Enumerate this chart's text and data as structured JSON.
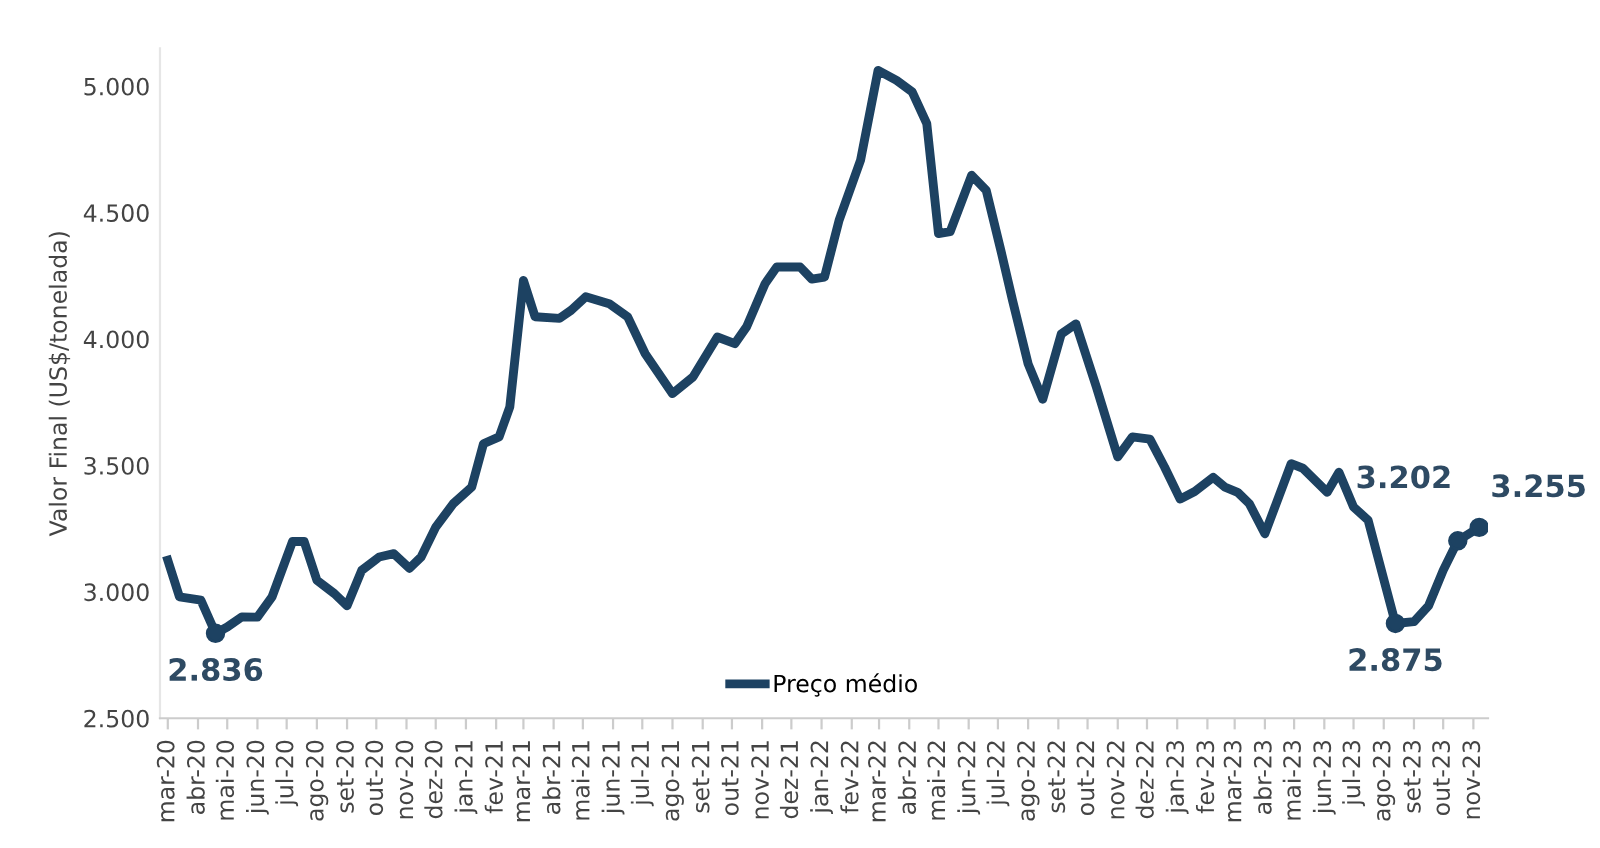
{
  "chart_data": {
    "type": "line",
    "ylabel": "Valor Final (US$/tonelada)",
    "x": [
      "2020-03-01",
      "2020-03-13",
      "2020-04-04",
      "2020-04-19",
      "2020-05-01",
      "2020-05-16",
      "2020-06-01",
      "2020-06-16",
      "2020-07-07",
      "2020-07-19",
      "2020-08-01",
      "2020-08-19",
      "2020-09-01",
      "2020-09-16",
      "2020-10-04",
      "2020-10-19",
      "2020-11-04",
      "2020-11-16",
      "2020-12-01",
      "2020-12-19",
      "2021-01-07",
      "2021-01-19",
      "2021-02-04",
      "2021-02-15",
      "2021-03-01",
      "2021-03-13",
      "2021-04-07",
      "2021-04-19",
      "2021-05-04",
      "2021-05-28",
      "2021-06-16",
      "2021-07-04",
      "2021-08-01",
      "2021-08-22",
      "2021-09-16",
      "2021-10-04",
      "2021-10-16",
      "2021-11-04",
      "2021-11-16",
      "2021-12-10",
      "2021-12-22",
      "2022-01-04",
      "2022-01-19",
      "2022-02-10",
      "2022-02-28",
      "2022-03-19",
      "2022-04-04",
      "2022-04-19",
      "2022-05-01",
      "2022-05-13",
      "2022-06-04",
      "2022-06-19",
      "2022-07-04",
      "2022-07-16",
      "2022-08-01",
      "2022-08-16",
      "2022-09-04",
      "2022-09-19",
      "2022-10-10",
      "2022-11-01",
      "2022-11-16",
      "2022-12-04",
      "2022-12-19",
      "2023-01-04",
      "2023-01-19",
      "2023-02-07",
      "2023-02-19",
      "2023-03-04",
      "2023-03-16",
      "2023-04-01",
      "2023-04-28",
      "2023-05-10",
      "2023-06-04",
      "2023-06-16",
      "2023-07-01",
      "2023-07-16",
      "2023-08-13",
      "2023-09-01",
      "2023-09-16",
      "2023-10-01",
      "2023-10-16",
      "2023-11-07"
    ],
    "series": [
      {
        "name": "Preço médio",
        "color": "#1d4262",
        "values": [
          3125,
          2980,
          2967,
          2836,
          2861,
          2901,
          2900,
          2980,
          3199,
          3199,
          3046,
          2993,
          2945,
          3085,
          3138,
          3151,
          3093,
          3138,
          3256,
          3349,
          3415,
          3586,
          3613,
          3731,
          4232,
          4088,
          4082,
          4114,
          4167,
          4140,
          4088,
          3942,
          3784,
          3850,
          4008,
          3982,
          4048,
          4219,
          4285,
          4285,
          4237,
          4245,
          4470,
          4707,
          5063,
          5023,
          4978,
          4852,
          4417,
          4425,
          4648,
          4588,
          4351,
          4153,
          3902,
          3762,
          4020,
          4060,
          3811,
          3534,
          3613,
          3604,
          3494,
          3367,
          3397,
          3453,
          3414,
          3394,
          3349,
          3230,
          3507,
          3489,
          3394,
          3473,
          3336,
          3283,
          2875,
          2882,
          2945,
          3085,
          3202,
          3255
        ]
      }
    ],
    "annotations": [
      {
        "text": "2.836",
        "x": "2020-04-19",
        "y": 2836
      },
      {
        "text": "2.875",
        "x": "2023-08-13",
        "y": 2875
      },
      {
        "text": "3.202",
        "x": "2023-10-16",
        "y": 3202
      },
      {
        "text": "3.255",
        "x": "2023-11-07",
        "y": 3255
      }
    ],
    "xlim": [
      "2020-02-22",
      "2023-11-16"
    ],
    "xticks": [
      {
        "value": "2020-03-01",
        "label": "mar-20"
      },
      {
        "value": "2020-04-01",
        "label": "abr-20"
      },
      {
        "value": "2020-05-01",
        "label": "mai-20"
      },
      {
        "value": "2020-06-01",
        "label": "jun-20"
      },
      {
        "value": "2020-07-01",
        "label": "jul-20"
      },
      {
        "value": "2020-08-01",
        "label": "ago-20"
      },
      {
        "value": "2020-09-01",
        "label": "set-20"
      },
      {
        "value": "2020-10-01",
        "label": "out-20"
      },
      {
        "value": "2020-11-01",
        "label": "nov-20"
      },
      {
        "value": "2020-12-01",
        "label": "dez-20"
      },
      {
        "value": "2021-01-01",
        "label": "jan-21"
      },
      {
        "value": "2021-02-01",
        "label": "fev-21"
      },
      {
        "value": "2021-03-01",
        "label": "mar-21"
      },
      {
        "value": "2021-04-01",
        "label": "abr-21"
      },
      {
        "value": "2021-05-01",
        "label": "mai-21"
      },
      {
        "value": "2021-06-01",
        "label": "jun-21"
      },
      {
        "value": "2021-07-01",
        "label": "jul-21"
      },
      {
        "value": "2021-08-01",
        "label": "ago-21"
      },
      {
        "value": "2021-09-01",
        "label": "set-21"
      },
      {
        "value": "2021-10-01",
        "label": "out-21"
      },
      {
        "value": "2021-11-01",
        "label": "nov-21"
      },
      {
        "value": "2021-12-01",
        "label": "dez-21"
      },
      {
        "value": "2022-01-01",
        "label": "jan-22"
      },
      {
        "value": "2022-02-01",
        "label": "fev-22"
      },
      {
        "value": "2022-03-01",
        "label": "mar-22"
      },
      {
        "value": "2022-04-01",
        "label": "abr-22"
      },
      {
        "value": "2022-05-01",
        "label": "mai-22"
      },
      {
        "value": "2022-06-01",
        "label": "jun-22"
      },
      {
        "value": "2022-07-01",
        "label": "jul-22"
      },
      {
        "value": "2022-08-01",
        "label": "ago-22"
      },
      {
        "value": "2022-09-01",
        "label": "set-22"
      },
      {
        "value": "2022-10-01",
        "label": "out-22"
      },
      {
        "value": "2022-11-01",
        "label": "nov-22"
      },
      {
        "value": "2022-12-01",
        "label": "dez-22"
      },
      {
        "value": "2023-01-01",
        "label": "jan-23"
      },
      {
        "value": "2023-02-01",
        "label": "fev-23"
      },
      {
        "value": "2023-03-01",
        "label": "mar-23"
      },
      {
        "value": "2023-04-01",
        "label": "abr-23"
      },
      {
        "value": "2023-05-01",
        "label": "mai-23"
      },
      {
        "value": "2023-06-01",
        "label": "jun-23"
      },
      {
        "value": "2023-07-01",
        "label": "jul-23"
      },
      {
        "value": "2023-08-01",
        "label": "ago-23"
      },
      {
        "value": "2023-09-01",
        "label": "set-23"
      },
      {
        "value": "2023-10-01",
        "label": "out-23"
      },
      {
        "value": "2023-11-01",
        "label": "nov-23"
      }
    ],
    "ylim": [
      2500,
      5150
    ],
    "yticks": [
      {
        "value": 2500,
        "label": "2.500"
      },
      {
        "value": 3000,
        "label": "3.000"
      },
      {
        "value": 3500,
        "label": "3.500"
      },
      {
        "value": 4000,
        "label": "4.000"
      },
      {
        "value": 4500,
        "label": "4.500"
      },
      {
        "value": 5000,
        "label": "5.000"
      }
    ],
    "grid": false,
    "legend": "bottom",
    "line_style": "solid",
    "marker": "none"
  }
}
